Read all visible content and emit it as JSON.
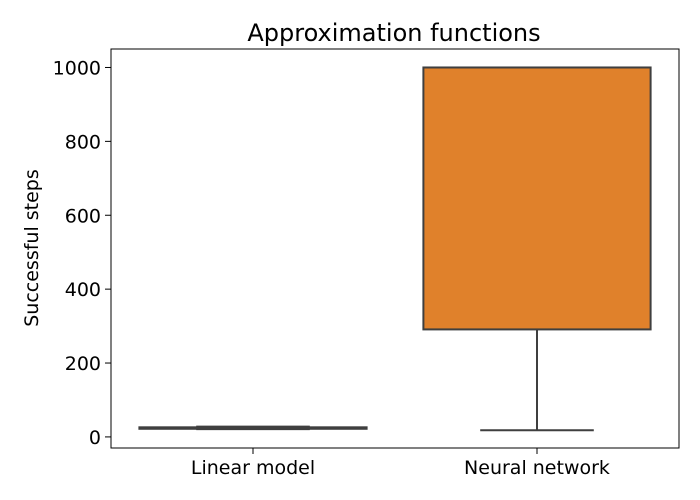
{
  "chart_data": {
    "type": "box",
    "title": "Approximation functions",
    "xlabel": "",
    "ylabel": "Successful steps",
    "categories": [
      "Linear model",
      "Neural network"
    ],
    "ylim": [
      -30,
      1050
    ],
    "yticks": [
      0,
      200,
      400,
      600,
      800,
      1000
    ],
    "grid": false,
    "boxes": [
      {
        "category": "Linear model",
        "whisker_low": 21,
        "q1": 22,
        "median": 24,
        "q3": 26,
        "whisker_high": 28,
        "color": "#3b75af"
      },
      {
        "category": "Neural network",
        "whisker_low": 18,
        "q1": 291,
        "median": 1000,
        "q3": 1000,
        "whisker_high": 1000,
        "color": "#e0812b"
      }
    ],
    "colors": {
      "outline": "#3f3f3f",
      "axis": "#000000"
    }
  }
}
